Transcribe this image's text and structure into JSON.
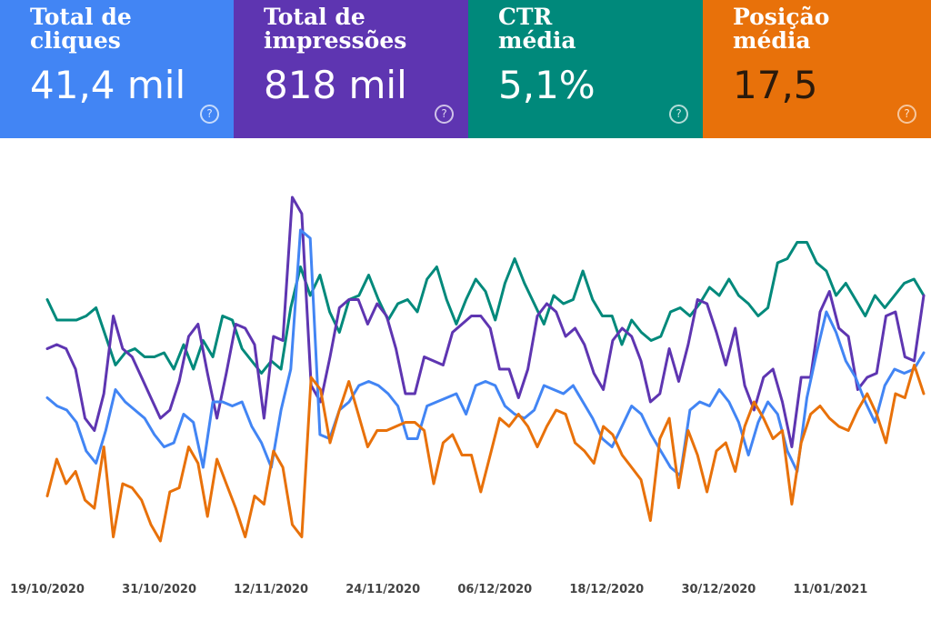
{
  "cards": [
    {
      "label": "Total de\ncliques",
      "value": "41,4 mil",
      "color": "#4285f4",
      "icon": "help-circle-icon",
      "icon_glyph": "?"
    },
    {
      "label": "Total de\nimpressões",
      "value": "818 mil",
      "color": "#5e35b1",
      "icon": "help-circle-icon",
      "icon_glyph": "?"
    },
    {
      "label": "CTR\nmédia",
      "value": "5,1%",
      "color": "#00897b",
      "icon": "help-circle-icon",
      "icon_glyph": "?"
    },
    {
      "label": "Posição\nmédia",
      "value": "17,5",
      "color": "#e8710a",
      "icon": "help-circle-icon",
      "icon_glyph": "?"
    }
  ],
  "chart_data": {
    "type": "line",
    "title": "",
    "xlabel": "",
    "ylabel": "",
    "x_ticks": [
      "19/10/2020",
      "31/10/2020",
      "12/11/2020",
      "24/11/2020",
      "06/12/2020",
      "18/12/2020",
      "30/12/2020",
      "11/01/2021"
    ],
    "x_start": "2020-10-19",
    "x_end": "2021-01-21",
    "normalized_scale": [
      0,
      100
    ],
    "grid": false,
    "legend": "none",
    "series": [
      {
        "color": "#00897b",
        "values": [
          65,
          60,
          60,
          60,
          61,
          63,
          56,
          49,
          52,
          53,
          51,
          51,
          52,
          48,
          54,
          48,
          55,
          51,
          61,
          60,
          53,
          50,
          47,
          50,
          48,
          63,
          73,
          66,
          71,
          62,
          57,
          65,
          66,
          71,
          65,
          60,
          64,
          65,
          62,
          70,
          73,
          65,
          59,
          65,
          70,
          67,
          60,
          69,
          75,
          69,
          64,
          59,
          66,
          64,
          65,
          72,
          65,
          61,
          61,
          54,
          60,
          57,
          55,
          56,
          62,
          63,
          61,
          64,
          68,
          66,
          70,
          66,
          64,
          61,
          63,
          74,
          75,
          79,
          79,
          74,
          72,
          66,
          69,
          65,
          61,
          66,
          63,
          66,
          69,
          70,
          66
        ]
      },
      {
        "color": "#5e35b1",
        "values": [
          53,
          54,
          53,
          48,
          36,
          33,
          42,
          61,
          53,
          51,
          46,
          41,
          36,
          38,
          45,
          56,
          59,
          47,
          36,
          47,
          59,
          58,
          54,
          36,
          56,
          55,
          90,
          86,
          44,
          40,
          51,
          63,
          65,
          65,
          59,
          64,
          61,
          53,
          42,
          42,
          51,
          50,
          49,
          57,
          59,
          61,
          61,
          58,
          48,
          48,
          41,
          48,
          61,
          64,
          62,
          56,
          58,
          54,
          47,
          43,
          55,
          58,
          56,
          50,
          40,
          42,
          53,
          45,
          54,
          65,
          64,
          57,
          49,
          58,
          44,
          38,
          46,
          48,
          40,
          29,
          46,
          46,
          62,
          67,
          58,
          56,
          43,
          46,
          47,
          61,
          62,
          51,
          50,
          66
        ]
      },
      {
        "color": "#4285f4",
        "values": [
          41,
          39,
          38,
          35,
          28,
          25,
          33,
          43,
          40,
          38,
          36,
          32,
          29,
          30,
          37,
          35,
          24,
          40,
          40,
          39,
          40,
          34,
          30,
          24,
          38,
          48,
          82,
          80,
          32,
          31,
          38,
          40,
          44,
          45,
          44,
          42,
          39,
          31,
          31,
          39,
          40,
          41,
          42,
          37,
          44,
          45,
          44,
          39,
          37,
          36,
          38,
          44,
          43,
          42,
          44,
          40,
          36,
          31,
          29,
          34,
          39,
          37,
          32,
          28,
          24,
          22,
          38,
          40,
          39,
          43,
          40,
          35,
          27,
          35,
          40,
          37,
          28,
          23,
          41,
          52,
          62,
          57,
          50,
          46,
          40,
          35,
          44,
          48,
          47,
          48,
          52
        ]
      },
      {
        "color": "#e8710a",
        "values": [
          17,
          26,
          20,
          23,
          16,
          14,
          29,
          7,
          20,
          19,
          16,
          10,
          6,
          18,
          19,
          29,
          25,
          12,
          26,
          20,
          14,
          7,
          17,
          15,
          28,
          24,
          10,
          7,
          46,
          43,
          30,
          38,
          45,
          37,
          29,
          33,
          33,
          34,
          35,
          35,
          33,
          20,
          30,
          32,
          27,
          27,
          18,
          27,
          36,
          34,
          37,
          34,
          29,
          34,
          38,
          37,
          30,
          28,
          25,
          34,
          32,
          27,
          24,
          21,
          11,
          31,
          36,
          19,
          33,
          27,
          18,
          28,
          30,
          23,
          34,
          40,
          36,
          31,
          33,
          15,
          30,
          37,
          39,
          36,
          34,
          33,
          38,
          42,
          37,
          30,
          42,
          41,
          49,
          42
        ]
      }
    ]
  }
}
